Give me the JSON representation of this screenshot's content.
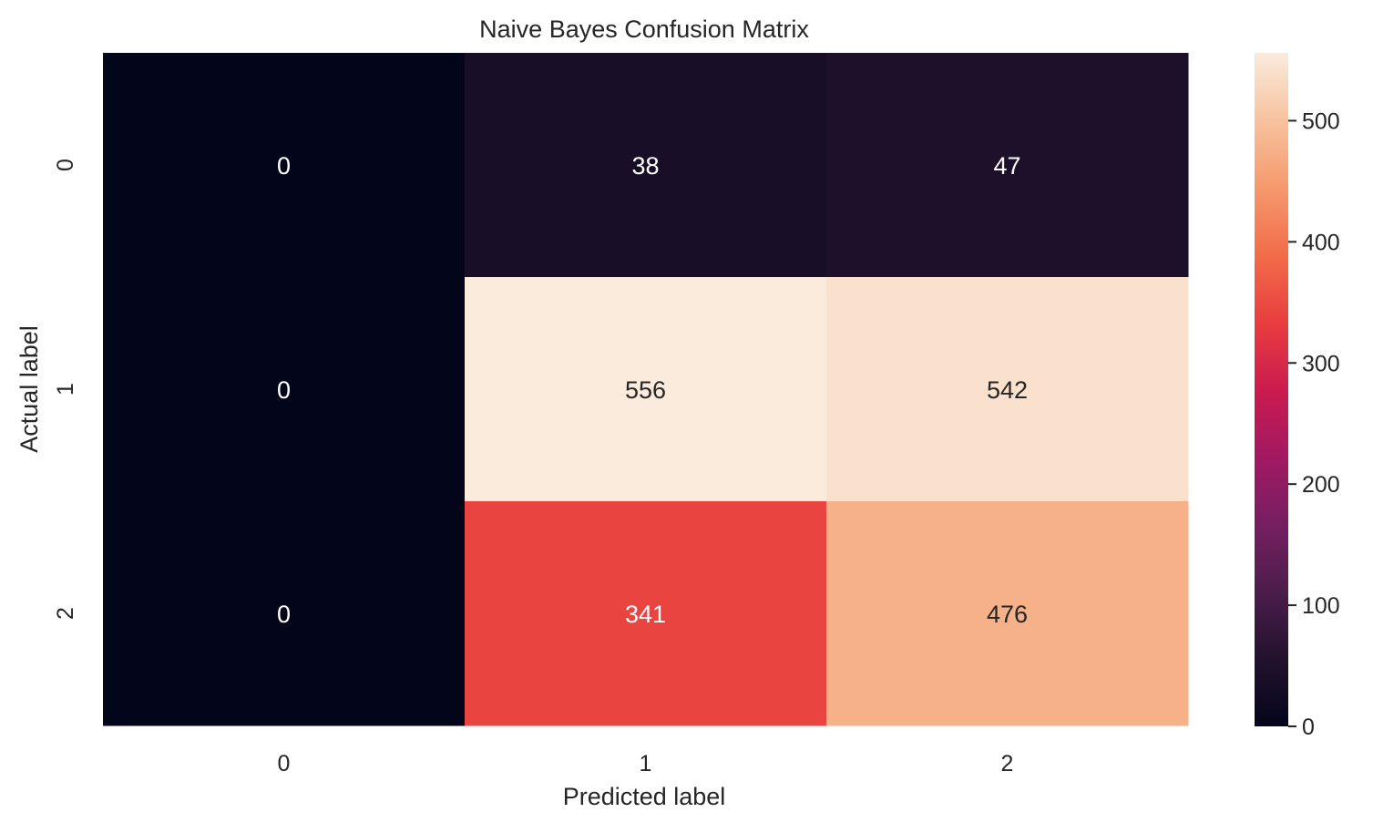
{
  "chart_data": {
    "type": "heatmap",
    "title": "Naive Bayes Confusion Matrix",
    "xlabel": "Predicted label",
    "ylabel": "Actual label",
    "x_categories": [
      "0",
      "1",
      "2"
    ],
    "y_categories": [
      "0",
      "1",
      "2"
    ],
    "values": [
      [
        0,
        38,
        47
      ],
      [
        0,
        556,
        542
      ],
      [
        0,
        341,
        476
      ]
    ],
    "colormap": "rocket",
    "vmin": 0,
    "vmax": 556,
    "colorbar": {
      "ticks": [
        0,
        100,
        200,
        300,
        400,
        500
      ],
      "placement": "right"
    },
    "annotation_colors": {
      "light": "#ffffff",
      "dark": "#262626"
    }
  }
}
